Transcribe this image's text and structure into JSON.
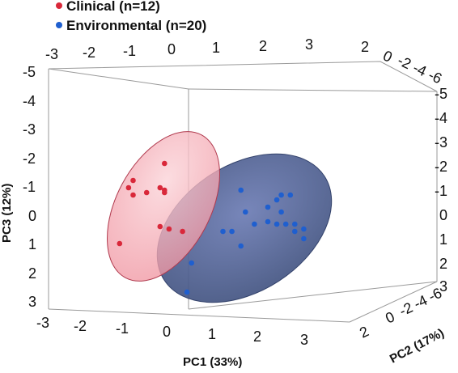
{
  "chart_data": {
    "type": "scatter",
    "projection": "3d",
    "series": [
      {
        "name": "Clinical (n=12)",
        "color": "#d9283a",
        "ellipse_color": "#f4a7b0",
        "points": [
          {
            "x": -1.0,
            "y": 0,
            "z": -1.5
          },
          {
            "x": -0.3,
            "y": 0,
            "z": -2.2
          },
          {
            "x": -1.1,
            "y": 0,
            "z": -1.2
          },
          {
            "x": -1.0,
            "y": 0,
            "z": -0.9
          },
          {
            "x": -0.4,
            "y": 0,
            "z": -1.2
          },
          {
            "x": -0.3,
            "y": 0,
            "z": -1.0
          },
          {
            "x": -0.7,
            "y": 0,
            "z": -1.0
          },
          {
            "x": -0.3,
            "y": 0,
            "z": -1.1
          },
          {
            "x": 0.1,
            "y": 0,
            "z": 0.6
          },
          {
            "x": -0.4,
            "y": 0,
            "z": 0.4
          },
          {
            "x": -0.2,
            "y": 0,
            "z": 0.5
          },
          {
            "x": -1.3,
            "y": 0,
            "z": 1.1
          }
        ]
      },
      {
        "name": "Environmental (n=20)",
        "color": "#1f5fcf",
        "ellipse_color": "#5b6ea6",
        "points": [
          {
            "x": 1.4,
            "y": 0,
            "z": -1.1
          },
          {
            "x": 2.3,
            "y": 0,
            "z": -0.9
          },
          {
            "x": 2.5,
            "y": 0,
            "z": -0.9
          },
          {
            "x": 2.2,
            "y": 0,
            "z": -0.7
          },
          {
            "x": 2.0,
            "y": 0,
            "z": -0.4
          },
          {
            "x": 2.3,
            "y": 0,
            "z": -0.2
          },
          {
            "x": 1.5,
            "y": 0,
            "z": -0.2
          },
          {
            "x": 2.0,
            "y": 0,
            "z": 0.2
          },
          {
            "x": 2.4,
            "y": 0,
            "z": 0.3
          },
          {
            "x": 2.6,
            "y": 0,
            "z": 0.3
          },
          {
            "x": 2.2,
            "y": 0,
            "z": 0.3
          },
          {
            "x": 1.7,
            "y": 0,
            "z": 0.3
          },
          {
            "x": 1.0,
            "y": 0,
            "z": 0.6
          },
          {
            "x": 1.2,
            "y": 0,
            "z": 0.6
          },
          {
            "x": 2.6,
            "y": 0,
            "z": 0.6
          },
          {
            "x": 2.8,
            "y": 0,
            "z": 0.5
          },
          {
            "x": 1.4,
            "y": 0,
            "z": 1.2
          },
          {
            "x": 2.8,
            "y": 0,
            "z": 0.9
          },
          {
            "x": 0.3,
            "y": 0,
            "z": 1.9
          },
          {
            "x": 0.2,
            "y": 0,
            "z": 3.1
          }
        ]
      }
    ],
    "x_axis": {
      "label": "PC1 (33%)",
      "range": [
        -3,
        3
      ],
      "ticks": [
        "-3",
        "-2",
        "-1",
        "0",
        "1",
        "2",
        "3"
      ]
    },
    "y_axis": {
      "label": "PC2 (17%)",
      "range": [
        -6,
        2
      ],
      "ticks": [
        "2",
        "0",
        "-2",
        "-4",
        "-6"
      ]
    },
    "z_axis": {
      "label": "PC3 (12%)",
      "range": [
        -5,
        3
      ],
      "reversed": true,
      "ticks": [
        "-5",
        "-4",
        "-3",
        "-2",
        "-1",
        "0",
        "1",
        "2",
        "3"
      ]
    },
    "legend": {
      "position": "top-left"
    },
    "grid": false
  }
}
